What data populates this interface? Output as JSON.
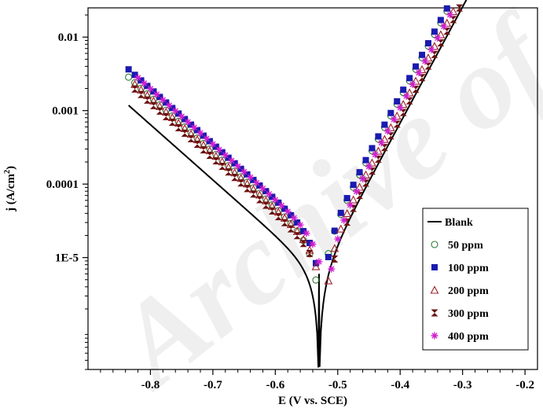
{
  "watermark_text": "Archive of SID",
  "chart_data": {
    "type": "scatter",
    "title": "",
    "xlabel": "E (V vs. SCE)",
    "ylabel": "j (A/cm",
    "ylabel_sup": "2",
    "ylabel_close": ")",
    "xlim": [
      -0.9,
      -0.18
    ],
    "ylim": [
      3e-07,
      0.025
    ],
    "yscale": "log",
    "x_ticks": [
      -0.8,
      -0.7,
      -0.6,
      -0.5,
      -0.4,
      -0.3,
      -0.2
    ],
    "x_tick_labels": [
      "-0.8",
      "-0.7",
      "-0.6",
      "-0.5",
      "-0.4",
      "-0.3",
      "-0.2"
    ],
    "y_ticks": [
      1e-05,
      0.0001,
      0.001,
      0.01
    ],
    "y_tick_labels": [
      "1E-5",
      "0.0001",
      "0.001",
      "0.01"
    ],
    "legend_position": "bottom-right",
    "series": [
      {
        "name": "Blank",
        "marker": "line",
        "color": "#000000",
        "ecorr": -0.53,
        "jcorr": 6e-06,
        "ba": 0.0633,
        "bc": 0.133,
        "x_start": -0.835,
        "x_end": -0.225,
        "every_other": false
      },
      {
        "name": "50 ppm",
        "marker": "circle",
        "color": "#2e7d32",
        "ecorr": -0.528,
        "jcorr": 1.4e-05,
        "ba": 0.0633,
        "bc": 0.133,
        "x_start": -0.835,
        "x_end": -0.225,
        "every_other": false
      },
      {
        "name": "100 ppm",
        "marker": "square",
        "color": "#1a1ab0",
        "ecorr": -0.525,
        "jcorr": 1.7e-05,
        "ba": 0.0633,
        "bc": 0.133,
        "x_start": -0.835,
        "x_end": -0.225,
        "every_other": false
      },
      {
        "name": "200 ppm",
        "marker": "triangle",
        "color": "#a0202a",
        "ecorr": -0.522,
        "jcorr": 1.2e-05,
        "ba": 0.0633,
        "bc": 0.133,
        "x_start": -0.825,
        "x_end": -0.225,
        "every_other": false
      },
      {
        "name": "300 ppm",
        "marker": "hourglass",
        "color": "#6b1010",
        "ecorr": -0.52,
        "jcorr": 1e-05,
        "ba": 0.0633,
        "bc": 0.133,
        "x_start": -0.825,
        "x_end": -0.225,
        "every_other": true
      },
      {
        "name": "400 ppm",
        "marker": "asterisk",
        "color": "#d020d0",
        "ecorr": -0.518,
        "jcorr": 1.5e-05,
        "ba": 0.0633,
        "bc": 0.133,
        "x_start": -0.82,
        "x_end": -0.225,
        "every_other": false
      }
    ]
  }
}
